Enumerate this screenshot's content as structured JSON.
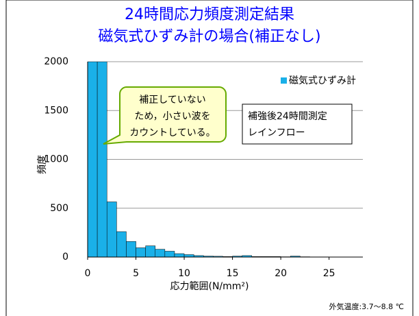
{
  "chart_data": {
    "type": "histogram",
    "title": [
      "24時間応力頻度測定結果",
      "磁気式ひずみ計の場合(補正なし)"
    ],
    "x_label": "応力範囲(N/mm²)",
    "y_label": "頻度",
    "bins": [
      0,
      1,
      2,
      3,
      4,
      5,
      6,
      7,
      8,
      9,
      10,
      11,
      12,
      13,
      14,
      15,
      16,
      17,
      18,
      19,
      20,
      21,
      22,
      23,
      24,
      25,
      26,
      27,
      28
    ],
    "series": [
      {
        "name": "磁気式ひずみ計",
        "color": "#1ab0e8",
        "values": [
          2000,
          2000,
          565,
          260,
          160,
          95,
          115,
          80,
          60,
          35,
          25,
          15,
          10,
          8,
          5,
          10,
          15,
          5,
          5,
          5,
          3,
          10,
          3,
          2,
          2,
          1,
          1,
          1
        ]
      }
    ],
    "xlim": [
      0,
      28.5
    ],
    "ylim": [
      0,
      2000
    ],
    "xticks": [
      0,
      5,
      10,
      15,
      20,
      25
    ],
    "yticks": [
      0,
      500,
      1000,
      1500,
      2000
    ],
    "grid": true,
    "legend": "upper right",
    "callout": [
      "補正していない",
      "ため，小さい波を",
      "カウントしている。"
    ],
    "note_box": [
      "補強後24時間測定",
      "レインフロー"
    ],
    "footer": "外気温度:3.7～8.8 ℃"
  }
}
